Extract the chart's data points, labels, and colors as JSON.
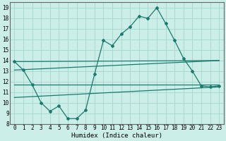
{
  "xlabel": "Humidex (Indice chaleur)",
  "background_color": "#cceee8",
  "grid_color": "#aad8d0",
  "line_color": "#1a7a6e",
  "xlim": [
    -0.5,
    23.5
  ],
  "ylim": [
    8,
    19.5
  ],
  "xticks": [
    0,
    1,
    2,
    3,
    4,
    5,
    6,
    7,
    8,
    9,
    10,
    11,
    12,
    13,
    14,
    15,
    16,
    17,
    18,
    19,
    20,
    21,
    22,
    23
  ],
  "yticks": [
    8,
    9,
    10,
    11,
    12,
    13,
    14,
    15,
    16,
    17,
    18,
    19
  ],
  "series1_x": [
    0,
    1,
    2,
    3,
    4,
    5,
    6,
    7,
    8,
    9,
    10,
    11,
    12,
    13,
    14,
    15,
    16,
    17,
    18,
    19,
    20,
    21,
    22,
    23
  ],
  "series1_y": [
    13.9,
    13.1,
    11.7,
    10.0,
    9.2,
    9.7,
    8.5,
    8.5,
    9.3,
    12.7,
    15.9,
    15.4,
    16.5,
    17.2,
    18.2,
    18.0,
    19.0,
    17.5,
    15.9,
    14.2,
    13.0,
    11.6,
    11.5,
    11.6
  ],
  "line2_x": [
    0,
    23
  ],
  "line2_y": [
    13.9,
    14.0
  ],
  "line3_x": [
    0,
    23
  ],
  "line3_y": [
    13.1,
    14.0
  ],
  "line4_x": [
    0,
    23
  ],
  "line4_y": [
    11.7,
    11.7
  ],
  "line5_x": [
    0,
    23
  ],
  "line5_y": [
    10.5,
    11.5
  ]
}
